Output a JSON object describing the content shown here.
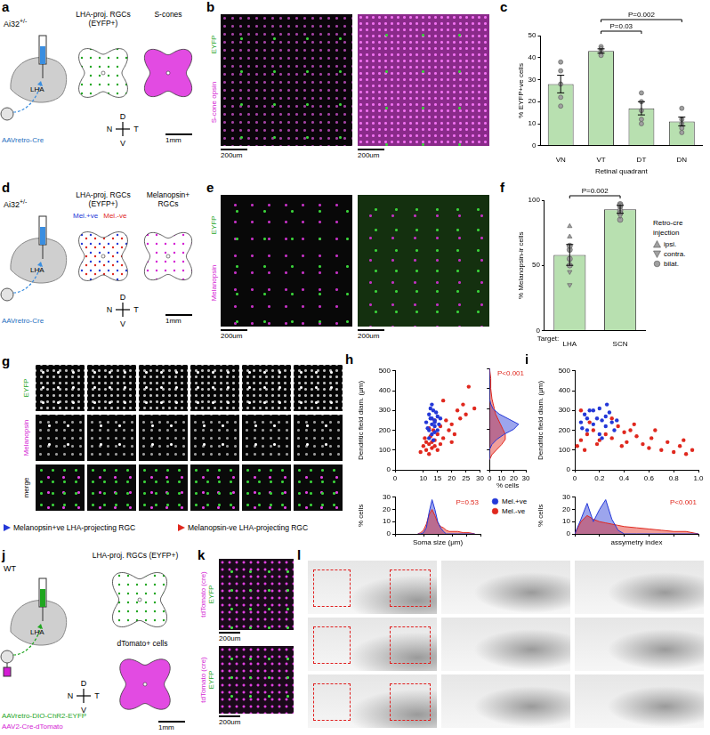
{
  "figure": {
    "a": {
      "letter": "a",
      "strain": "Ai32",
      "genotype": "+/-",
      "target": "LHA",
      "virus": "AAVretro-Cre",
      "maps": [
        "LHA-proj. RGCs (EYFP+)",
        "S-cones"
      ],
      "scale": "1mm",
      "compass": {
        "up": "D",
        "down": "V",
        "left": "N",
        "right": "T"
      }
    },
    "b": {
      "letter": "b",
      "channels": [
        "EYFP",
        "S-cone opsin"
      ],
      "scale": "200um"
    },
    "d": {
      "letter": "d",
      "strain": "Ai32",
      "genotype": "+/-",
      "target": "LHA",
      "virus": "AAVretro-Cre",
      "maps": [
        "LHA-proj. RGCs (EYFP+)",
        "Melanopsin+ RGCs"
      ],
      "key": [
        {
          "name": "Mel.+ve",
          "color": "#2438d8"
        },
        {
          "name": "Mel.-ve",
          "color": "#e0281e"
        }
      ],
      "scale": "1mm",
      "compass": {
        "up": "D",
        "down": "V",
        "left": "N",
        "right": "T"
      }
    },
    "e": {
      "letter": "e",
      "channels": [
        "EYFP",
        "Melanopsin"
      ],
      "scale": "200um"
    },
    "g": {
      "letter": "g",
      "rows": [
        "EYFP",
        "Melanopsin",
        "merge"
      ],
      "legend": [
        {
          "name": "Melanopsin+ve LHA-projecting RGC",
          "color": "#2438d8"
        },
        {
          "name": "Melanopsin-ve LHA-projecting RGC",
          "color": "#e0281e"
        }
      ]
    },
    "j": {
      "letter": "j",
      "strain": "WT",
      "target": "LHA",
      "viruses": [
        "AAVretro-DIO-ChR2-EYFP",
        "AAV2-Cre-dTomato"
      ],
      "maps": [
        "LHA-proj. RGCs (EYFP+)",
        "dTomato+ cells"
      ],
      "scale": "1mm",
      "compass": {
        "up": "D",
        "down": "V",
        "left": "N",
        "right": "T"
      }
    },
    "k": {
      "letter": "k",
      "channels": [
        "tdTomato (cre)",
        "EYFP"
      ],
      "scale": "200um"
    },
    "l": {
      "letter": "l"
    }
  },
  "chart_data": [
    {
      "panel": "c",
      "type": "bar",
      "categories": [
        "VN",
        "VT",
        "DT",
        "DN"
      ],
      "values": [
        28,
        43,
        17,
        11
      ],
      "errors": [
        4,
        1,
        3,
        2
      ],
      "points": [
        [
          38,
          34,
          28,
          22,
          18
        ],
        [
          45,
          44,
          43,
          42,
          41
        ],
        [
          24,
          20,
          16,
          12,
          10
        ],
        [
          17,
          12,
          10,
          8,
          6
        ]
      ],
      "color": "#b8e0b0",
      "ylim": [
        0,
        50
      ],
      "yticks": [
        0,
        10,
        20,
        30,
        40,
        50
      ],
      "ylabel": "% EYFP+ve cells",
      "xlabel": "Retinal quadrant",
      "annotations": [
        {
          "text": "P=0.03",
          "from": "VT",
          "to": "DT"
        },
        {
          "text": "P=0.002",
          "from": "VT",
          "to": "DN"
        }
      ],
      "grid": false
    },
    {
      "panel": "f",
      "type": "bar",
      "categories": [
        "LHA",
        "SCN"
      ],
      "values": [
        58,
        93
      ],
      "errors": [
        8,
        3
      ],
      "series": [
        {
          "name": "ipsi.",
          "marker": "triangle",
          "color": "#a0a0a0",
          "values": [
            [
              "LHA",
              72
            ],
            [
              "LHA",
              80
            ],
            [
              "SCN",
              95
            ]
          ]
        },
        {
          "name": "contra.",
          "marker": "triangle-down",
          "color": "#a0a0a0",
          "values": [
            [
              "LHA",
              45
            ],
            [
              "LHA",
              35
            ],
            [
              "SCN",
              88
            ]
          ]
        },
        {
          "name": "bilat.",
          "marker": "circle",
          "color": "#a0a0a0",
          "values": [
            [
              "LHA",
              55
            ],
            [
              "LHA",
              62
            ],
            [
              "LHA",
              50
            ],
            [
              "LHA",
              65
            ],
            [
              "SCN",
              85
            ],
            [
              "SCN",
              92
            ],
            [
              "SCN",
              97
            ],
            [
              "SCN",
              90
            ],
            [
              "SCN",
              96
            ]
          ]
        }
      ],
      "legend_title": "Retro-cre injection",
      "legend": "right",
      "color": "#b8e0b0",
      "ylim": [
        0,
        100
      ],
      "yticks": [
        0,
        50,
        100
      ],
      "ylabel": "% Melanopsin-ir cells",
      "tick_prefix": "Target:",
      "annotations": [
        {
          "text": "P=0.002",
          "from": "LHA",
          "to": "SCN"
        }
      ],
      "grid": false
    },
    {
      "panel": "h",
      "type": "scatter",
      "series": [
        {
          "name": "Mel.+ve",
          "color": "#2438d8",
          "values": [
            [
              11,
              240
            ],
            [
              12,
              280
            ],
            [
              12,
              200
            ],
            [
              12.5,
              310
            ],
            [
              13,
              230
            ],
            [
              13,
              260
            ],
            [
              13.5,
              300
            ],
            [
              13,
              180
            ],
            [
              14,
              250
            ],
            [
              14,
              220
            ],
            [
              14.5,
              290
            ],
            [
              15,
              270
            ],
            [
              15,
              200
            ],
            [
              12,
              160
            ],
            [
              13,
              330
            ],
            [
              14,
              240
            ],
            [
              16,
              260
            ],
            [
              11.5,
              210
            ],
            [
              13.5,
              150
            ],
            [
              15.5,
              230
            ],
            [
              12.5,
              260
            ],
            [
              14,
              190
            ]
          ]
        },
        {
          "name": "Mel.-ve",
          "color": "#e0281e",
          "values": [
            [
              9,
              90
            ],
            [
              10,
              120
            ],
            [
              10.5,
              160
            ],
            [
              11,
              100
            ],
            [
              11,
              140
            ],
            [
              12,
              80
            ],
            [
              12,
              130
            ],
            [
              12.5,
              170
            ],
            [
              13,
              110
            ],
            [
              13,
              140
            ],
            [
              13.5,
              200
            ],
            [
              14,
              150
            ],
            [
              14,
              120
            ],
            [
              15,
              180
            ],
            [
              15,
              100
            ],
            [
              16,
              220
            ],
            [
              16,
              130
            ],
            [
              17,
              160
            ],
            [
              18,
              250
            ],
            [
              19,
              200
            ],
            [
              20,
              230
            ],
            [
              20,
              140
            ],
            [
              22,
              300
            ],
            [
              23,
              260
            ],
            [
              24,
              330
            ],
            [
              25,
              280
            ],
            [
              26,
              420
            ],
            [
              28,
              310
            ],
            [
              12,
              210
            ],
            [
              14,
              250
            ],
            [
              17,
              350
            ],
            [
              21,
              180
            ]
          ]
        }
      ],
      "xlim": [
        0,
        30
      ],
      "xticks": [
        0,
        10,
        15,
        20,
        25,
        30
      ],
      "ylim": [
        0,
        500
      ],
      "yticks": [
        0,
        100,
        200,
        300,
        400,
        500
      ],
      "ylabel": "Dendritic field diam. (μm)",
      "legend": "bottom right",
      "grid": false
    },
    {
      "panel": "h",
      "type": "area",
      "orientation": "horizontal",
      "y": [
        50,
        75,
        100,
        125,
        150,
        175,
        200,
        225,
        250,
        275,
        300,
        325,
        350,
        400,
        450,
        500
      ],
      "series": [
        {
          "color": "#2438d8",
          "values": [
            0,
            0,
            0,
            2,
            6,
            12,
            20,
            24,
            16,
            8,
            3,
            1,
            0,
            0,
            0,
            0
          ]
        },
        {
          "color": "#e0281e",
          "values": [
            0,
            2,
            6,
            10,
            13,
            13,
            11,
            9,
            7,
            5,
            4,
            3,
            2,
            1,
            1,
            0
          ]
        }
      ],
      "xlim": [
        0,
        30
      ],
      "xticks": [
        0,
        10,
        20,
        30
      ],
      "ylim": [
        0,
        500
      ],
      "yticks": [
        0,
        100,
        200,
        300,
        400,
        500
      ],
      "xlabel": "% cells",
      "tick_labels": "x",
      "annotations": [
        {
          "text": "P<0.001",
          "color": "#e0281e"
        }
      ],
      "grid": false
    },
    {
      "panel": "h",
      "type": "area",
      "x": [
        8,
        9,
        10,
        11,
        12,
        13,
        14,
        15,
        16,
        17,
        18,
        19,
        20,
        22,
        24,
        26,
        28
      ],
      "series": [
        {
          "color": "#2438d8",
          "values": [
            0,
            0,
            1,
            5,
            18,
            28,
            20,
            10,
            5,
            2,
            0,
            0,
            0,
            0,
            0,
            0,
            0
          ]
        },
        {
          "color": "#e0281e",
          "values": [
            0,
            1,
            3,
            8,
            16,
            20,
            15,
            9,
            6,
            5,
            3,
            2,
            2,
            2,
            1,
            1,
            0
          ]
        }
      ],
      "xlim": [
        0,
        30
      ],
      "xticks": [
        0,
        10,
        15,
        20,
        25,
        30
      ],
      "ylim": [
        0,
        30
      ],
      "yticks": [
        0,
        10,
        20,
        30
      ],
      "xlabel": "Soma size (μm)",
      "ylabel": "% cells",
      "tick_labels": "y",
      "annotations": [
        {
          "text": "P=0.53",
          "color": "#e0281e"
        }
      ],
      "grid": false
    },
    {
      "panel": "i",
      "type": "scatter",
      "series": [
        {
          "color": "#2438d8",
          "values": [
            [
              0.05,
              240
            ],
            [
              0.08,
              280
            ],
            [
              0.1,
              200
            ],
            [
              0.12,
              300
            ],
            [
              0.15,
              230
            ],
            [
              0.18,
              260
            ],
            [
              0.2,
              310
            ],
            [
              0.22,
              250
            ],
            [
              0.25,
              270
            ],
            [
              0.25,
              220
            ],
            [
              0.28,
              290
            ],
            [
              0.3,
              240
            ],
            [
              0.32,
              200
            ],
            [
              0.1,
              260
            ],
            [
              0.2,
              180
            ],
            [
              0.26,
              330
            ],
            [
              0.34,
              250
            ],
            [
              0.15,
              300
            ],
            [
              0.06,
              210
            ],
            [
              0.22,
              160
            ]
          ]
        },
        {
          "color": "#e0281e",
          "values": [
            [
              0.02,
              120
            ],
            [
              0.05,
              150
            ],
            [
              0.08,
              100
            ],
            [
              0.1,
              180
            ],
            [
              0.15,
              200
            ],
            [
              0.18,
              130
            ],
            [
              0.2,
              150
            ],
            [
              0.25,
              180
            ],
            [
              0.3,
              160
            ],
            [
              0.35,
              220
            ],
            [
              0.38,
              120
            ],
            [
              0.4,
              190
            ],
            [
              0.42,
              140
            ],
            [
              0.45,
              200
            ],
            [
              0.5,
              170
            ],
            [
              0.55,
              130
            ],
            [
              0.6,
              110
            ],
            [
              0.62,
              160
            ],
            [
              0.7,
              100
            ],
            [
              0.75,
              140
            ],
            [
              0.8,
              90
            ],
            [
              0.85,
              120
            ],
            [
              0.9,
              80
            ],
            [
              0.95,
              100
            ],
            [
              0.3,
              260
            ],
            [
              0.12,
              240
            ],
            [
              0.48,
              230
            ],
            [
              0.65,
              200
            ],
            [
              0.05,
              300
            ],
            [
              0.88,
              150
            ]
          ]
        }
      ],
      "xlim": [
        0,
        1
      ],
      "xticks": [
        0,
        0.2,
        0.4,
        0.6,
        0.8,
        {
          "value": 1,
          "label": "1.0"
        }
      ],
      "ylim": [
        0,
        500
      ],
      "yticks": [
        0,
        100,
        200,
        300,
        400,
        500
      ],
      "ylabel": "Dendritic field diam. (μm)",
      "grid": false
    },
    {
      "panel": "i",
      "type": "area",
      "x": [
        0,
        0.05,
        0.1,
        0.15,
        0.2,
        0.25,
        0.3,
        0.35,
        0.4,
        0.5,
        0.6,
        0.7,
        0.8,
        0.9,
        1
      ],
      "series": [
        {
          "color": "#2438d8",
          "values": [
            0,
            12,
            25,
            10,
            20,
            28,
            12,
            3,
            0,
            0,
            0,
            0,
            0,
            0,
            0
          ]
        },
        {
          "color": "#e0281e",
          "values": [
            0,
            10,
            15,
            12,
            10,
            9,
            8,
            7,
            6,
            5,
            4,
            3,
            2,
            2,
            0
          ]
        }
      ],
      "xlim": [
        0,
        1
      ],
      "xticks": [
        0,
        0.2,
        0.4,
        0.6,
        0.8,
        {
          "value": 1,
          "label": "1.0"
        }
      ],
      "ylim": [
        0,
        30
      ],
      "yticks": [
        0,
        10,
        20,
        30
      ],
      "xlabel": "assymetry index",
      "ylabel": "% cells",
      "tick_labels": "y",
      "annotations": [
        {
          "text": "P<0.001",
          "color": "#e0281e"
        }
      ],
      "grid": false
    }
  ]
}
